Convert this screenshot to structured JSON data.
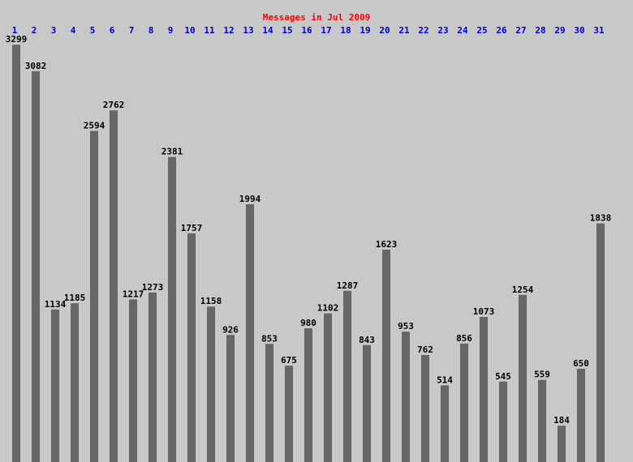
{
  "chart_data": {
    "type": "bar",
    "title": "Messages in Jul 2009",
    "categories": [
      "1",
      "2",
      "3",
      "4",
      "5",
      "6",
      "7",
      "8",
      "9",
      "10",
      "11",
      "12",
      "13",
      "14",
      "15",
      "16",
      "17",
      "18",
      "19",
      "20",
      "21",
      "22",
      "23",
      "24",
      "25",
      "26",
      "27",
      "28",
      "29",
      "30",
      "31"
    ],
    "values": [
      3299,
      3082,
      1134,
      1185,
      2594,
      2762,
      1217,
      1273,
      2381,
      1757,
      1158,
      926,
      1994,
      853,
      675,
      980,
      1102,
      1287,
      843,
      1623,
      953,
      762,
      514,
      856,
      1073,
      545,
      1254,
      559,
      184,
      650,
      1838
    ],
    "color": "#666666",
    "ylim": [
      0,
      3300
    ]
  }
}
